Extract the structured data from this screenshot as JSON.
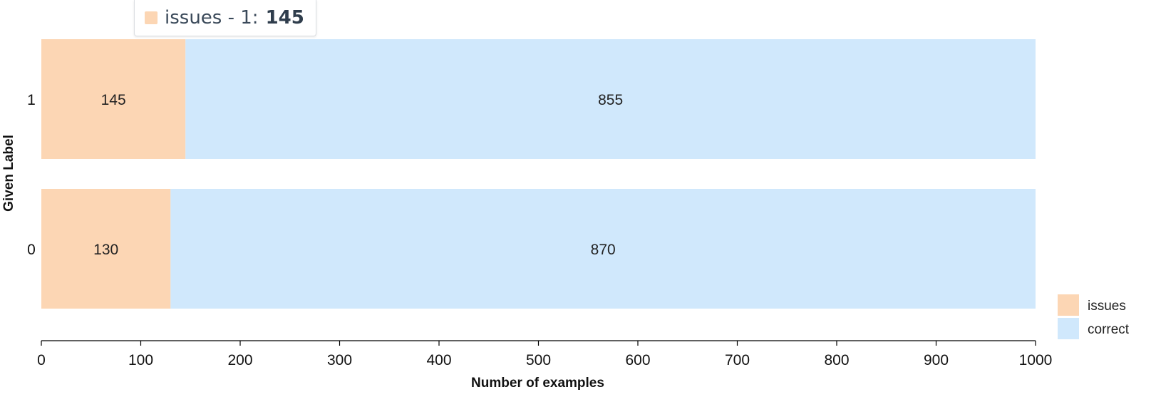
{
  "chart_data": {
    "type": "bar",
    "orientation": "horizontal",
    "stacked": true,
    "categories": [
      "1",
      "0"
    ],
    "series": [
      {
        "name": "issues",
        "values": [
          145,
          130
        ],
        "color": "#fcd6b4"
      },
      {
        "name": "correct",
        "values": [
          855,
          870
        ],
        "color": "#d0e8fc"
      }
    ],
    "xlabel": "Number of examples",
    "ylabel": "Given Label",
    "xlim": [
      0,
      1000
    ],
    "xticks": [
      "0",
      "100",
      "200",
      "300",
      "400",
      "500",
      "600",
      "700",
      "800",
      "900",
      "1000"
    ],
    "grid": false,
    "legend": {
      "position": "bottom-right",
      "entries": [
        "issues",
        "correct"
      ]
    }
  },
  "tooltip": {
    "label": "issues - 1:",
    "value": "145",
    "color": "#fcd6b4"
  }
}
